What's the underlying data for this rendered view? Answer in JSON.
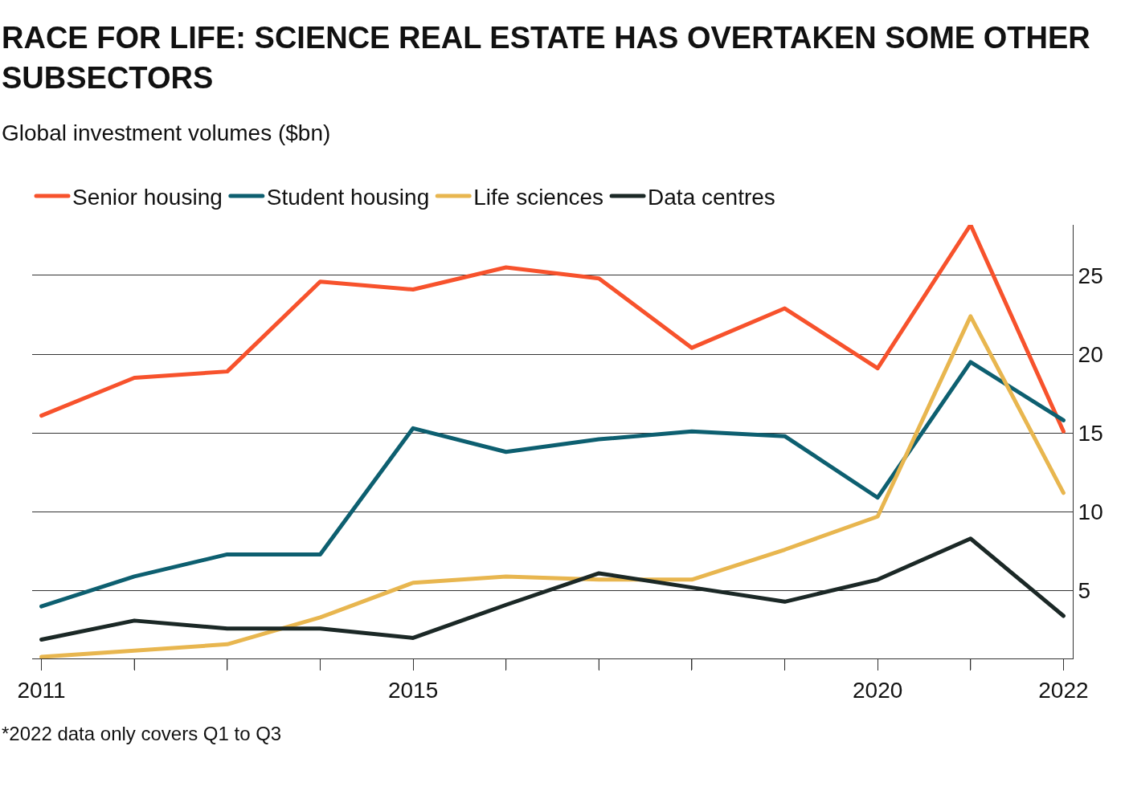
{
  "chart_data": {
    "type": "line",
    "title": "RACE FOR LIFE: SCIENCE REAL ESTATE HAS OVERTAKEN SOME OTHER SUBSECTORS",
    "subtitle": "Global investment volumes ($bn)",
    "x": [
      2011,
      2012,
      2013,
      2014,
      2015,
      2016,
      2017,
      2018,
      2019,
      2020,
      2021,
      2022
    ],
    "series": [
      {
        "name": "Senior housing",
        "color": "#f7522c",
        "values": [
          16.1,
          18.5,
          18.9,
          24.6,
          24.1,
          25.5,
          24.8,
          20.4,
          22.9,
          19.1,
          28.2,
          15.1
        ]
      },
      {
        "name": "Student housing",
        "color": "#0d5f70",
        "values": [
          4.0,
          5.9,
          7.3,
          7.3,
          15.3,
          13.8,
          14.6,
          15.1,
          14.8,
          10.9,
          19.5,
          15.8
        ]
      },
      {
        "name": "Life sciences",
        "color": "#e8b64f",
        "values": [
          0.8,
          1.2,
          1.6,
          3.3,
          5.5,
          5.9,
          5.7,
          5.7,
          7.6,
          9.7,
          22.4,
          11.2
        ]
      },
      {
        "name": "Data centres",
        "color": "#1b2826",
        "values": [
          1.9,
          3.1,
          2.6,
          2.6,
          2.0,
          4.1,
          6.1,
          5.2,
          4.3,
          5.7,
          8.3,
          3.4
        ]
      }
    ],
    "xlim": [
      2010.9,
      2022.1
    ],
    "ylim": [
      0.7,
      28.2
    ],
    "xticks": [
      2011,
      {
        "value": 2012,
        "label": null
      },
      {
        "value": 2013,
        "label": null
      },
      {
        "value": 2014,
        "label": null
      },
      2015,
      {
        "value": 2016,
        "label": null
      },
      {
        "value": 2017,
        "label": null
      },
      {
        "value": 2018,
        "label": null
      },
      {
        "value": 2019,
        "label": null
      },
      2020,
      {
        "value": 2021,
        "label": null
      },
      2022
    ],
    "yticks": [
      5,
      10,
      15,
      20,
      25
    ],
    "grid": "y",
    "legend": "top left",
    "marker": "none",
    "line_style": "solid",
    "annotations": [
      "*2022 data only covers Q1 to Q3"
    ]
  }
}
